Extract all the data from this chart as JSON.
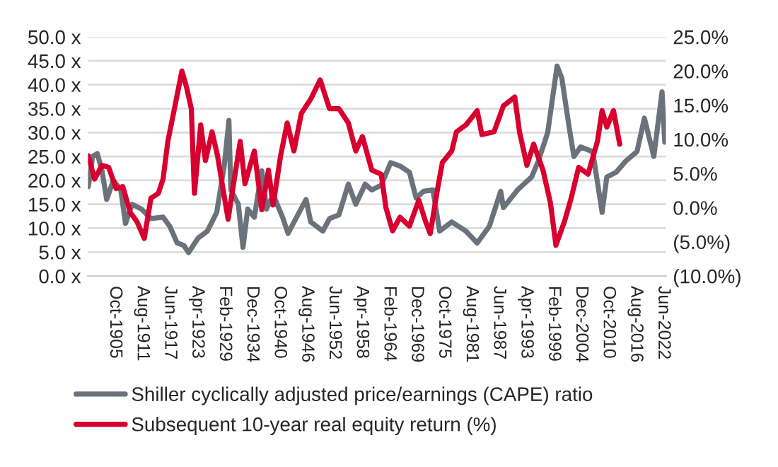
{
  "chart_data": {
    "type": "line",
    "xlim": [
      "1900-01",
      "2023-01"
    ],
    "xticks": [
      {
        "value": "1905-10",
        "label": "Oct-1905"
      },
      {
        "value": "1911-08",
        "label": "Aug-1911"
      },
      {
        "value": "1917-06",
        "label": "Jun-1917"
      },
      {
        "value": "1923-04",
        "label": "Apr-1923"
      },
      {
        "value": "1929-02",
        "label": "Feb-1929"
      },
      {
        "value": "1934-12",
        "label": "Dec-1934"
      },
      {
        "value": "1940-10",
        "label": "Oct-1940"
      },
      {
        "value": "1946-08",
        "label": "Aug-1946"
      },
      {
        "value": "1952-06",
        "label": "Jun-1952"
      },
      {
        "value": "1958-04",
        "label": "Apr-1958"
      },
      {
        "value": "1964-02",
        "label": "Feb-1964"
      },
      {
        "value": "1969-12",
        "label": "Dec-1969"
      },
      {
        "value": "1975-10",
        "label": "Oct-1975"
      },
      {
        "value": "1981-08",
        "label": "Aug-1981"
      },
      {
        "value": "1987-06",
        "label": "Jun-1987"
      },
      {
        "value": "1993-04",
        "label": "Apr-1993"
      },
      {
        "value": "1999-02",
        "label": "Feb-1999"
      },
      {
        "value": "2004-12",
        "label": "Dec-2004"
      },
      {
        "value": "2010-10",
        "label": "Oct-2010"
      },
      {
        "value": "2016-08",
        "label": "Aug-2016"
      },
      {
        "value": "2022-06",
        "label": "Jun-2022"
      }
    ],
    "ylim": [
      0,
      50
    ],
    "yticks": [
      {
        "value": 0,
        "label": "0.0 x"
      },
      {
        "value": 5,
        "label": "5.0 x"
      },
      {
        "value": 10,
        "label": "10.0 x"
      },
      {
        "value": 15,
        "label": "15.0 x"
      },
      {
        "value": 20,
        "label": "20.0 x"
      },
      {
        "value": 25,
        "label": "25.0 x"
      },
      {
        "value": 30,
        "label": "30.0 x"
      },
      {
        "value": 35,
        "label": "35.0 x"
      },
      {
        "value": 40,
        "label": "40.0 x"
      },
      {
        "value": 45,
        "label": "45.0 x"
      },
      {
        "value": 50,
        "label": "50.0 x"
      }
    ],
    "y2lim": [
      -10,
      25
    ],
    "y2ticks": [
      {
        "value": -10,
        "label": "(10.0%)"
      },
      {
        "value": -5,
        "label": "(5.0%)"
      },
      {
        "value": 0,
        "label": "0.0%"
      },
      {
        "value": 5,
        "label": "5.0%"
      },
      {
        "value": 10,
        "label": "10.0%"
      },
      {
        "value": 15,
        "label": "15.0%"
      },
      {
        "value": 20,
        "label": "20.0%"
      },
      {
        "value": 25,
        "label": "25.0%"
      }
    ],
    "grid": "y",
    "legend": "bottom",
    "marker": "none",
    "line_style": "solid",
    "series": [
      {
        "name": "Shiller cyclically adjusted price/earnings (CAPE) ratio",
        "color": "#6a737b",
        "x": [
          "1900-02",
          "1901-01",
          "1902-01",
          "1903-01",
          "1904-01",
          "1905-06",
          "1907-01",
          "1908-01",
          "1909-06",
          "1911-06",
          "1913-06",
          "1916-01",
          "1917-06",
          "1919-01",
          "1920-06",
          "1921-06",
          "1923-06",
          "1925-06",
          "1927-06",
          "1929-01",
          "1930-01",
          "1930-06",
          "1932-01",
          "1933-01",
          "1934-01",
          "1935-06",
          "1937-01",
          "1938-01",
          "1939-06",
          "1941-06",
          "1942-08",
          "1944-06",
          "1946-06",
          "1947-06",
          "1950-01",
          "1951-06",
          "1953-06",
          "1955-06",
          "1957-01",
          "1959-01",
          "1960-06",
          "1962-06",
          "1964-06",
          "1966-06",
          "1968-06",
          "1969-11",
          "1971-06",
          "1973-06",
          "1974-11",
          "1977-06",
          "1980-06",
          "1982-11",
          "1985-06",
          "1987-11",
          "1988-06",
          "1991-06",
          "1994-06",
          "1995-11",
          "1997-11",
          "1999-11",
          "2000-11",
          "2002-06",
          "2003-06",
          "2004-11",
          "2007-06",
          "2009-06",
          "2010-06",
          "2012-06",
          "2014-06",
          "2016-11",
          "2018-06",
          "2020-06",
          "2022-03",
          "2022-10"
        ],
        "values": [
          18.7,
          25,
          25.6,
          22,
          16,
          20,
          18,
          11,
          15,
          14,
          12,
          12.3,
          10.4,
          6.9,
          6.4,
          4.9,
          7.9,
          9.4,
          13.3,
          23,
          32.5,
          18,
          15,
          6,
          14,
          12.3,
          22,
          14,
          17,
          12.3,
          8.9,
          12.3,
          16,
          11.3,
          9.4,
          12,
          12.8,
          19.2,
          15,
          19.2,
          18,
          19,
          23.7,
          23,
          21.7,
          16.3,
          17.7,
          18,
          9.4,
          11.3,
          9.4,
          6.9,
          10.4,
          17.7,
          14.3,
          18,
          20.7,
          24,
          30,
          43.9,
          41.4,
          31,
          25,
          27,
          26,
          13.3,
          20.7,
          21.7,
          24,
          26,
          33,
          25,
          38.5,
          28
        ]
      },
      {
        "name": "Subsequent 10-year real equity return (%)",
        "color": "#d7002e",
        "axis": "y2",
        "x": [
          "1900-02",
          "1901-06",
          "1903-01",
          "1904-06",
          "1906-01",
          "1907-06",
          "1909-01",
          "1910-06",
          "1912-01",
          "1913-06",
          "1915-01",
          "1916-01",
          "1917-01",
          "1918-06",
          "1920-01",
          "1921-01",
          "1922-01",
          "1922-09",
          "1924-01",
          "1925-01",
          "1926-06",
          "1927-08",
          "1929-06",
          "1929-11",
          "1930-11",
          "1932-06",
          "1933-06",
          "1935-06",
          "1937-01",
          "1938-06",
          "1939-06",
          "1941-01",
          "1942-06",
          "1943-11",
          "1945-06",
          "1947-06",
          "1949-06",
          "1951-06",
          "1953-06",
          "1955-06",
          "1957-01",
          "1958-06",
          "1960-06",
          "1962-06",
          "1963-06",
          "1964-11",
          "1966-06",
          "1968-06",
          "1970-06",
          "1971-11",
          "1972-11",
          "1974-06",
          "1975-06",
          "1977-06",
          "1978-06",
          "1980-06",
          "1982-11",
          "1983-11",
          "1986-06",
          "1988-06",
          "1990-11",
          "1991-11",
          "1993-06",
          "1994-11",
          "1996-11",
          "1998-06",
          "1999-08",
          "2001-06",
          "2002-11",
          "2004-06",
          "2006-06",
          "2008-06",
          "2009-06",
          "2010-06",
          "2011-11",
          "2013-03"
        ],
        "values": [
          7.6,
          4.2,
          6.2,
          5.9,
          2.8,
          3.1,
          -0.7,
          -2.0,
          -4.5,
          1.4,
          2.1,
          4.2,
          9.7,
          14.5,
          20,
          17.6,
          14.5,
          2.1,
          12.1,
          6.9,
          11.1,
          7.6,
          0.0,
          -1.7,
          2.8,
          9.7,
          3.5,
          8.3,
          -0.3,
          5.5,
          0.4,
          7.6,
          12.4,
          8.3,
          13.8,
          15.9,
          18.7,
          14.5,
          14.5,
          12.4,
          8.3,
          10.4,
          5.5,
          4.9,
          0.0,
          -3.4,
          -1.4,
          -2.7,
          1.1,
          -2.0,
          -3.8,
          2.8,
          6.6,
          8.3,
          11.1,
          12.1,
          14.2,
          10.7,
          11.1,
          14.9,
          16.2,
          11.1,
          6.2,
          9.3,
          5.5,
          0.7,
          -5.5,
          -2.0,
          1.4,
          5.9,
          4.9,
          9.7,
          14.2,
          11.8,
          14.2,
          9.3
        ]
      }
    ]
  }
}
